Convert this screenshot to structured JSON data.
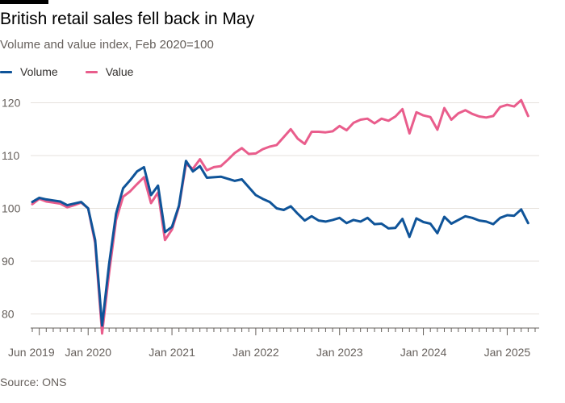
{
  "title": "British retail sales fell back in May",
  "subtitle": "Volume and value index, Feb 2020=100",
  "source": "Source: ONS",
  "colors": {
    "volume": "#0f5499",
    "value": "#e95d8c",
    "grid": "#e6e1dc",
    "axis": "#66605c"
  },
  "chart_data": {
    "type": "line",
    "title": "British retail sales fell back in May",
    "subtitle": "Volume and value index, Feb 2020=100",
    "xlabel": "",
    "ylabel": "",
    "ylim": [
      76,
      122
    ],
    "y_ticks": [
      80,
      90,
      100,
      110,
      120
    ],
    "x_start": "2019-05",
    "x_end": "2025-05",
    "x_tick_labels": [
      {
        "date": "2019-06",
        "label": "Jun 2019"
      },
      {
        "date": "2020-01",
        "label": "Jan 2020"
      },
      {
        "date": "2021-01",
        "label": "Jan 2021"
      },
      {
        "date": "2022-01",
        "label": "Jan 2022"
      },
      {
        "date": "2023-01",
        "label": "Jan 2023"
      },
      {
        "date": "2024-01",
        "label": "Jan 2024"
      },
      {
        "date": "2025-01",
        "label": "Jan 2025"
      }
    ],
    "grid": true,
    "legend_position": "top-left",
    "series": [
      {
        "name": "Volume",
        "values": [
          101.2,
          102.0,
          101.7,
          101.5,
          101.3,
          100.6,
          100.9,
          101.2,
          100.0,
          94.0,
          77.8,
          89.5,
          99.0,
          103.8,
          105.3,
          107.0,
          107.8,
          102.5,
          104.3,
          95.5,
          96.5,
          100.5,
          109.0,
          107.0,
          108.0,
          105.8,
          105.9,
          106.0,
          105.6,
          105.2,
          105.5,
          104.0,
          102.5,
          101.8,
          101.2,
          100.0,
          99.7,
          100.4,
          99.0,
          97.7,
          98.5,
          97.7,
          97.5,
          97.8,
          98.2,
          97.2,
          97.8,
          97.5,
          98.2,
          97.0,
          97.1,
          96.2,
          96.3,
          98.0,
          94.6,
          98.1,
          97.4,
          97.1,
          95.3,
          98.4,
          97.1,
          97.8,
          98.5,
          98.2,
          97.7,
          97.5,
          97.0,
          98.2,
          98.7,
          98.6,
          99.8,
          97.2
        ]
      },
      {
        "name": "Value",
        "values": [
          100.8,
          101.8,
          101.3,
          101.1,
          100.9,
          100.2,
          100.6,
          101.1,
          100.0,
          93.4,
          76.3,
          87.8,
          97.8,
          102.2,
          103.2,
          104.6,
          105.9,
          101.0,
          103.0,
          94.0,
          96.0,
          100.3,
          108.4,
          107.5,
          109.3,
          107.2,
          107.8,
          108.0,
          109.2,
          110.5,
          111.4,
          110.3,
          110.4,
          111.2,
          111.7,
          112.0,
          113.5,
          115.0,
          113.2,
          112.2,
          114.5,
          114.5,
          114.4,
          114.6,
          115.6,
          114.8,
          116.2,
          116.8,
          117.0,
          116.1,
          117.0,
          116.6,
          117.4,
          118.8,
          114.2,
          118.2,
          117.6,
          117.3,
          114.9,
          119.0,
          116.8,
          118.0,
          118.6,
          117.9,
          117.4,
          117.2,
          117.5,
          119.2,
          119.6,
          119.3,
          120.5,
          117.5
        ]
      }
    ]
  }
}
